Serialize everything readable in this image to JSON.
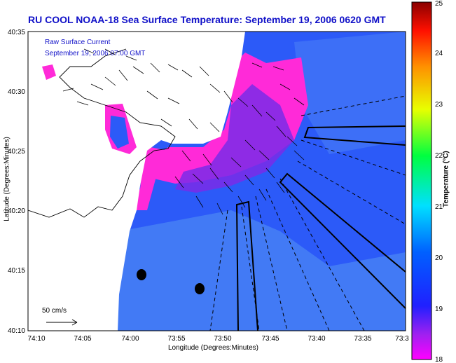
{
  "title": "RU COOL NOAA-18 Sea Surface Temperature: September 19, 2006 0620 GMT",
  "legend": {
    "line1": "Raw Surface Current",
    "line2": "September 19, 2006 07:00 GMT"
  },
  "scale_label": "50 cm/s",
  "axes": {
    "xlabel": "Longitude (Degrees:Minutes)",
    "ylabel": "Latitude (Degrees:Minutes)",
    "xticks": [
      "74:10",
      "74:05",
      "74:00",
      "73:55",
      "73:50",
      "73:45",
      "73:40",
      "73:35",
      "73:3"
    ],
    "yticks": [
      "40:35",
      "40:30",
      "40:25",
      "40:20",
      "40:15",
      "40:10"
    ]
  },
  "colorbar": {
    "label": "Temperature (°C)",
    "ticks": [
      "25",
      "24",
      "23",
      "22",
      "21",
      "20",
      "19",
      "18"
    ],
    "min": 18,
    "max": 25
  },
  "colors": {
    "title": "#1010c8",
    "water_deep": "#1e3cff",
    "water_light": "#3a6ef8",
    "cold_magenta": "#ff2ad8",
    "land": "#ffffff"
  }
}
